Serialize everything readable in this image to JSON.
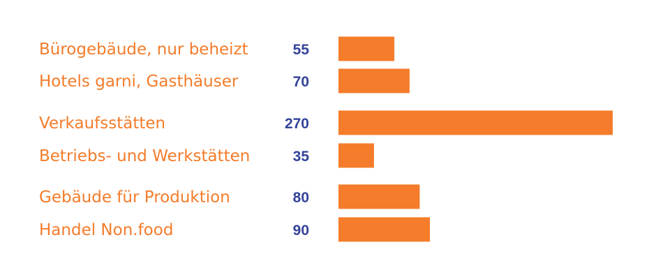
{
  "chart_data": {
    "type": "bar",
    "orientation": "horizontal",
    "categories": [
      "Bürogebäude, nur beheizt",
      "Hotels garni, Gasthäuser",
      "Verkaufsstätten",
      "Betriebs- und Werkstätten",
      "Gebäude für Produktion",
      "Handel Non.food"
    ],
    "values": [
      55,
      70,
      270,
      35,
      80,
      90
    ],
    "value_labels": [
      "55",
      "70",
      "270",
      "35",
      "80",
      "90"
    ],
    "title": "",
    "xlabel": "",
    "ylabel": "",
    "xlim": [
      0,
      270
    ],
    "grid": false,
    "legend": "none",
    "colors": {
      "bar": "#f47c2a",
      "category_text": "#f47c2a",
      "value_text": "#34439a",
      "background": "#ffffff"
    }
  }
}
